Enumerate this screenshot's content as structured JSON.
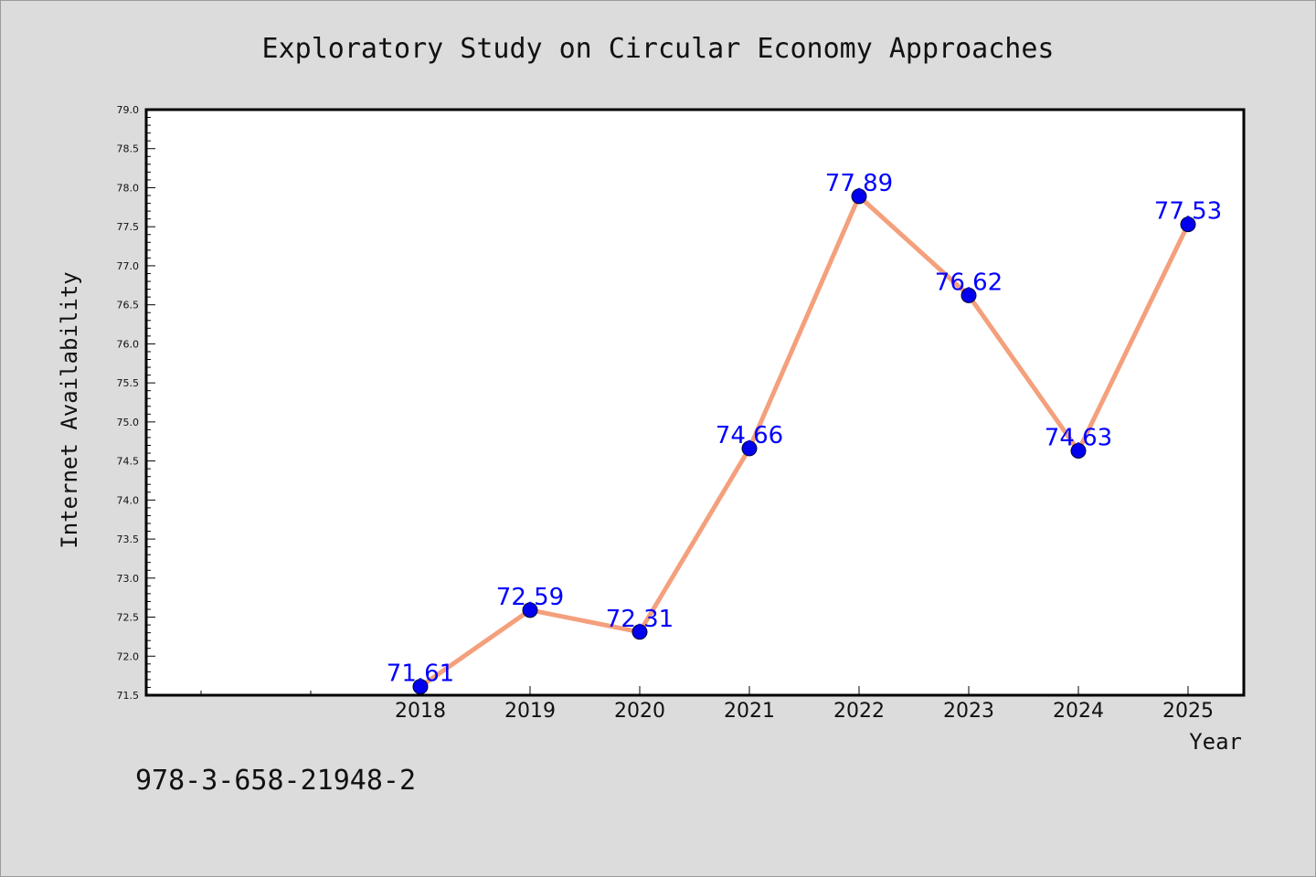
{
  "chart_data": {
    "type": "line",
    "title": "Exploratory Study on Circular Economy Approaches",
    "xlabel": "Year",
    "ylabel": "Internet Availability",
    "categories": [
      "2018",
      "2019",
      "2020",
      "2021",
      "2022",
      "2023",
      "2024",
      "2025"
    ],
    "series": [
      {
        "values": [
          71.61,
          72.59,
          72.31,
          74.66,
          77.89,
          76.62,
          74.63,
          77.53
        ],
        "data_labels": [
          "71.61",
          "72.59",
          "72.31",
          "74.66",
          "77.89",
          "76.62",
          "74.63",
          "77.53"
        ]
      }
    ],
    "x_ticks": [
      "2018",
      "2019",
      "2020",
      "2021",
      "2022",
      "2023",
      "2024",
      "2025"
    ],
    "y_ticks": [
      "71.5",
      "72.0",
      "72.5",
      "73.0",
      "73.5",
      "74.0",
      "74.5",
      "75.0",
      "75.5",
      "76.0",
      "76.5",
      "77.0",
      "77.5",
      "78.0",
      "78.5",
      "79.0"
    ],
    "ylim": [
      71.5,
      79.0
    ],
    "grid": false,
    "legend": "none",
    "colors": {
      "line": "#f4a07c",
      "marker": "#0000ee",
      "data_label": "#0000ff",
      "background": "#dcdcdc",
      "plot_area": "#ffffff"
    }
  },
  "footer_note": "978-3-658-21948-2"
}
